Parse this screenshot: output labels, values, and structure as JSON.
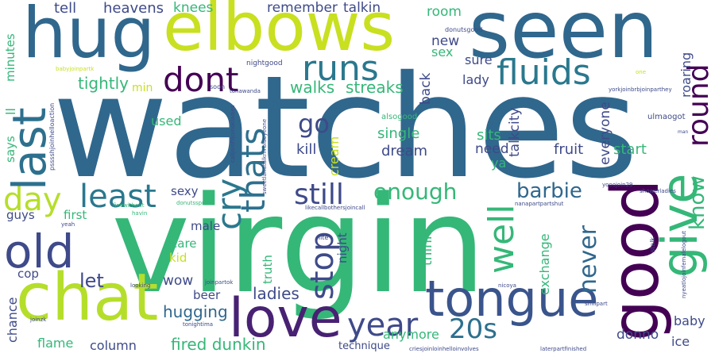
{
  "title": "Word Cloud",
  "words": [
    {
      "text": "watches",
      "color": "#30678d"
    },
    {
      "text": "virgin",
      "color": "#35b778"
    },
    {
      "text": "seen",
      "color": "#30678d"
    },
    {
      "text": "hug",
      "color": "#30678d"
    },
    {
      "text": "elbows",
      "color": "#c8e020"
    },
    {
      "text": "chat",
      "color": "#b5de2b"
    },
    {
      "text": "tongue",
      "color": "#3a548c"
    },
    {
      "text": "love",
      "color": "#482173"
    },
    {
      "text": "good",
      "color": "#440154"
    },
    {
      "text": "give",
      "color": "#35b778"
    },
    {
      "text": "old",
      "color": "#3e4a89"
    },
    {
      "text": "last",
      "color": "#2d708e"
    },
    {
      "text": "day",
      "color": "#b5de2b"
    },
    {
      "text": "runs",
      "color": "#2a788e"
    },
    {
      "text": "fluids",
      "color": "#2a788e"
    },
    {
      "text": "dont",
      "color": "#440154"
    },
    {
      "text": "least",
      "color": "#2a788e"
    },
    {
      "text": "cry",
      "color": "#2a788e"
    },
    {
      "text": "thats",
      "color": "#2d708e"
    },
    {
      "text": "still",
      "color": "#3e4a89"
    },
    {
      "text": "year",
      "color": "#3e4a89"
    },
    {
      "text": "stop",
      "color": "#3e4a89"
    },
    {
      "text": "20s",
      "color": "#2d708e"
    },
    {
      "text": "well",
      "color": "#35b778"
    },
    {
      "text": "round",
      "color": "#440154"
    },
    {
      "text": "know",
      "color": "#35b778"
    },
    {
      "text": "never",
      "color": "#30678d"
    },
    {
      "text": "barbie",
      "color": "#30678d"
    },
    {
      "text": "enough",
      "color": "#35b778"
    },
    {
      "text": "go",
      "color": "#3e4a89"
    },
    {
      "text": "fired dunkin",
      "color": "#35b778"
    },
    {
      "text": "hugging",
      "color": "#30678d"
    },
    {
      "text": "let",
      "color": "#3e4a89"
    },
    {
      "text": "ladies",
      "color": "#3e4a89"
    },
    {
      "text": "walks",
      "color": "#35b778"
    },
    {
      "text": "streaks",
      "color": "#35b778"
    },
    {
      "text": "tightly",
      "color": "#35b778"
    },
    {
      "text": "heavens",
      "color": "#3e4a89"
    },
    {
      "text": "knees",
      "color": "#35b778"
    },
    {
      "text": "remember",
      "color": "#3e4a89"
    },
    {
      "text": "talkin",
      "color": "#3e4a89"
    },
    {
      "text": "tell",
      "color": "#3e4a89"
    },
    {
      "text": "room",
      "color": "#35b778"
    },
    {
      "text": "new",
      "color": "#3e4a89"
    },
    {
      "text": "sex",
      "color": "#35b778"
    },
    {
      "text": "sure",
      "color": "#3e4a89"
    },
    {
      "text": "lady",
      "color": "#3e4a89"
    },
    {
      "text": "back",
      "color": "#3e4a89"
    },
    {
      "text": "single",
      "color": "#35b778"
    },
    {
      "text": "sits",
      "color": "#35b778"
    },
    {
      "text": "need",
      "color": "#3e4a89"
    },
    {
      "text": "dream",
      "color": "#3e4a89"
    },
    {
      "text": "kill",
      "color": "#3e4a89"
    },
    {
      "text": "cream",
      "color": "#c8e020"
    },
    {
      "text": "ya",
      "color": "#35b778"
    },
    {
      "text": "talkcity",
      "color": "#3e4a89"
    },
    {
      "text": "fruit",
      "color": "#3e4a89"
    },
    {
      "text": "start",
      "color": "#35b778"
    },
    {
      "text": "everyone",
      "color": "#3e4a89"
    },
    {
      "text": "roaring",
      "color": "#3e4a89"
    },
    {
      "text": "minutes",
      "color": "#35b778"
    },
    {
      "text": "says",
      "color": "#35b778"
    },
    {
      "text": "ll",
      "color": "#35b778"
    },
    {
      "text": "min",
      "color": "#c8e020"
    },
    {
      "text": "used",
      "color": "#35b778"
    },
    {
      "text": "sexy",
      "color": "#3e4a89"
    },
    {
      "text": "guys",
      "color": "#3e4a89"
    },
    {
      "text": "first",
      "color": "#35b778"
    },
    {
      "text": "male",
      "color": "#3e4a89"
    },
    {
      "text": "care",
      "color": "#35b778"
    },
    {
      "text": "kid",
      "color": "#c8e020"
    },
    {
      "text": "wow",
      "color": "#3e4a89"
    },
    {
      "text": "beer",
      "color": "#3e4a89"
    },
    {
      "text": "cop",
      "color": "#3e4a89"
    },
    {
      "text": "chance",
      "color": "#3e4a89"
    },
    {
      "text": "flame",
      "color": "#35b778"
    },
    {
      "text": "column",
      "color": "#3e4a89"
    },
    {
      "text": "truth",
      "color": "#35b778"
    },
    {
      "text": "night",
      "color": "#3e4a89"
    },
    {
      "text": "think",
      "color": "#35b778"
    },
    {
      "text": "anymore",
      "color": "#35b778"
    },
    {
      "text": "technique",
      "color": "#3e4a89"
    },
    {
      "text": "donno",
      "color": "#3e4a89"
    },
    {
      "text": "exchange",
      "color": "#35b778"
    },
    {
      "text": "baby",
      "color": "#3e4a89"
    },
    {
      "text": "ice",
      "color": "#3e4a89"
    },
    {
      "text": "ulmaogot",
      "color": "#3e4a89"
    },
    {
      "text": "alsogood",
      "color": "#35b778"
    },
    {
      "text": "nightgood",
      "color": "#3e4a89"
    },
    {
      "text": "soon",
      "color": "#3e4a89"
    },
    {
      "text": "tonawanda",
      "color": "#3e4a89"
    },
    {
      "text": "donutsgood",
      "color": "#3e4a89"
    },
    {
      "text": "yorkjoinbrbjoinparthey",
      "color": "#3e4a89"
    },
    {
      "text": "babyjoinpartk",
      "color": "#c8e020"
    },
    {
      "text": "psssshjoinhelloaction",
      "color": "#3e4a89"
    },
    {
      "text": "calljoinhijoinokladies",
      "color": "#3e4a89"
    },
    {
      "text": "sweetlandtalkmrblueyeone",
      "color": "#3e4a89"
    },
    {
      "text": "yooojoin29",
      "color": "#3e4a89"
    },
    {
      "text": "showerladies",
      "color": "#3e4a89"
    },
    {
      "text": "nanapartpartshut",
      "color": "#3e4a89"
    },
    {
      "text": "donutsspread",
      "color": "#35b778"
    },
    {
      "text": "havin",
      "color": "#35b778"
    },
    {
      "text": "finewithout",
      "color": "#35b778"
    },
    {
      "text": "joinpartok",
      "color": "#3e4a89"
    },
    {
      "text": "looking",
      "color": "#3e4a89"
    },
    {
      "text": "tonightima",
      "color": "#3e4a89"
    },
    {
      "text": "yeah",
      "color": "#3e4a89"
    },
    {
      "text": "joinzk",
      "color": "#3e4a89"
    },
    {
      "text": "nite",
      "color": "#3e4a89"
    },
    {
      "text": "criesjoinloinhelloinvolves",
      "color": "#3e4a89"
    },
    {
      "text": "laterpartfinished",
      "color": "#3e4a89"
    },
    {
      "text": "smilpart",
      "color": "#3e4a89"
    },
    {
      "text": "nicoya",
      "color": "#3e4a89"
    },
    {
      "text": "stalk",
      "color": "#3e4a89"
    },
    {
      "text": "nyeatlojoinfemalelogout",
      "color": "#3e4a89"
    },
    {
      "text": "likecallbothersjoincall",
      "color": "#3e4a89"
    },
    {
      "text": "one",
      "color": "#c8e020"
    },
    {
      "text": "man",
      "color": "#3e4a89"
    }
  ]
}
